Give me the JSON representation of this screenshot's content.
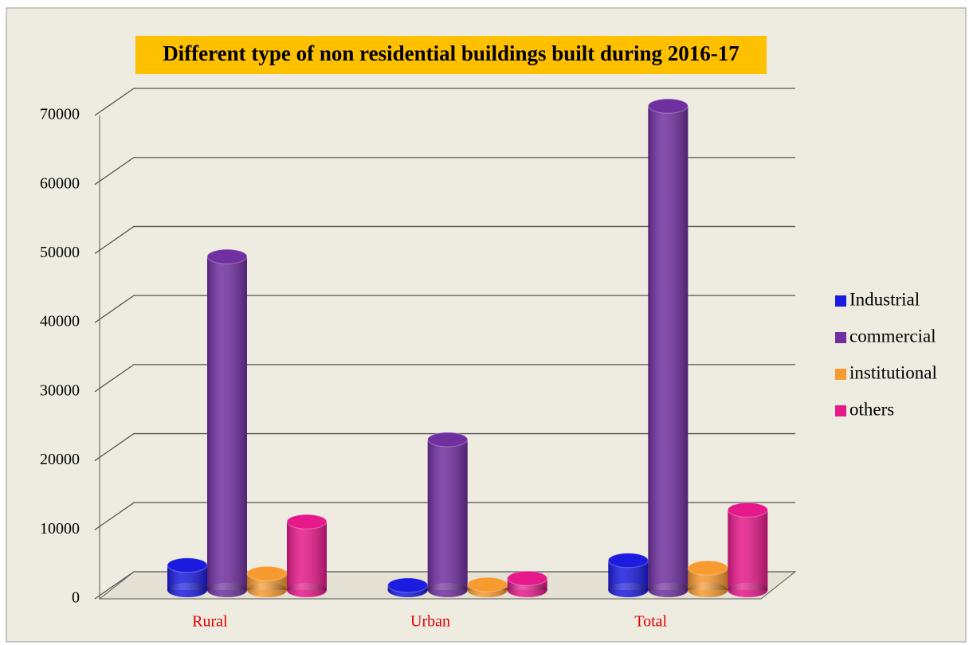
{
  "chart_data": {
    "type": "bar3d",
    "title": "Different type of  non residential buildings built during 2016-17",
    "categories": [
      "Rural",
      "Urban",
      "Total"
    ],
    "series": [
      {
        "name": "Industrial",
        "color": "#1c1ce0",
        "values": [
          3600,
          700,
          4300
        ]
      },
      {
        "name": "commercial",
        "color": "#7030a0",
        "values": [
          48300,
          21800,
          70100
        ]
      },
      {
        "name": "institutional",
        "color": "#f79a30",
        "values": [
          2400,
          800,
          3200
        ]
      },
      {
        "name": "others",
        "color": "#e6198b",
        "values": [
          9900,
          1700,
          11600
        ]
      }
    ],
    "ylim": [
      0,
      70000
    ],
    "yticks": [
      0,
      10000,
      20000,
      30000,
      40000,
      50000,
      60000,
      70000
    ],
    "grid": true,
    "legend": "right"
  }
}
